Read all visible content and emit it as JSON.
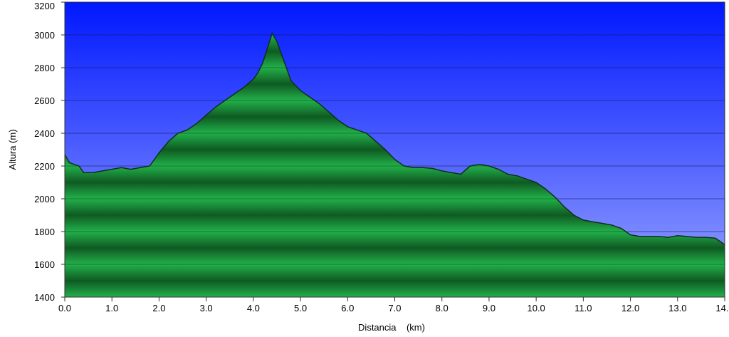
{
  "chart_data": {
    "type": "area",
    "title": "",
    "xlabel": "Distancia    (km)",
    "ylabel": "Altura (m)",
    "xlim": [
      0,
      14.0
    ],
    "ylim": [
      1400,
      3200
    ],
    "grid": true,
    "legend": "none",
    "x_ticks": [
      "0.0",
      "1.0",
      "2.0",
      "3.0",
      "4.0",
      "5.0",
      "6.0",
      "7.0",
      "8.0",
      "9.0",
      "10.0",
      "11.0",
      "12.0",
      "13.0",
      "14.0"
    ],
    "y_ticks": [
      "1400",
      "1600",
      "1800",
      "2000",
      "2200",
      "2400",
      "2600",
      "2800",
      "3000",
      "3200"
    ],
    "colors": {
      "sky_top": "#0018ff",
      "sky_bottom": "#9aa6ff",
      "fill_dark": "#0f5a22",
      "fill_light": "#22b04a",
      "outline": "#10301a",
      "grid": "#1e3a1e"
    },
    "series": [
      {
        "x": [
          0.0,
          0.1,
          0.2,
          0.3,
          0.4,
          0.6,
          0.8,
          1.0,
          1.2,
          1.4,
          1.6,
          1.8,
          2.0,
          2.2,
          2.4,
          2.6,
          2.8,
          3.0,
          3.2,
          3.4,
          3.6,
          3.8,
          4.0,
          4.1,
          4.2,
          4.3,
          4.4,
          4.5,
          4.6,
          4.8,
          5.0,
          5.2,
          5.4,
          5.6,
          5.8,
          6.0,
          6.2,
          6.4,
          6.6,
          6.8,
          7.0,
          7.2,
          7.4,
          7.6,
          7.8,
          8.0,
          8.2,
          8.4,
          8.6,
          8.8,
          9.0,
          9.2,
          9.4,
          9.6,
          9.8,
          10.0,
          10.2,
          10.4,
          10.6,
          10.8,
          11.0,
          11.2,
          11.4,
          11.6,
          11.8,
          12.0,
          12.2,
          12.4,
          12.6,
          12.8,
          13.0,
          13.2,
          13.4,
          13.6,
          13.8,
          14.0,
          14.05
        ],
        "values": [
          2270,
          2220,
          2210,
          2200,
          2160,
          2160,
          2170,
          2180,
          2190,
          2180,
          2190,
          2200,
          2280,
          2350,
          2400,
          2420,
          2460,
          2510,
          2560,
          2600,
          2640,
          2680,
          2730,
          2770,
          2830,
          2920,
          3010,
          2960,
          2880,
          2720,
          2660,
          2620,
          2580,
          2530,
          2480,
          2440,
          2420,
          2400,
          2350,
          2300,
          2240,
          2200,
          2190,
          2190,
          2185,
          2170,
          2160,
          2150,
          2200,
          2210,
          2200,
          2180,
          2150,
          2140,
          2120,
          2100,
          2060,
          2010,
          1950,
          1900,
          1870,
          1860,
          1850,
          1840,
          1820,
          1780,
          1770,
          1770,
          1770,
          1765,
          1775,
          1770,
          1765,
          1765,
          1760,
          1720,
          1710
        ]
      }
    ]
  }
}
